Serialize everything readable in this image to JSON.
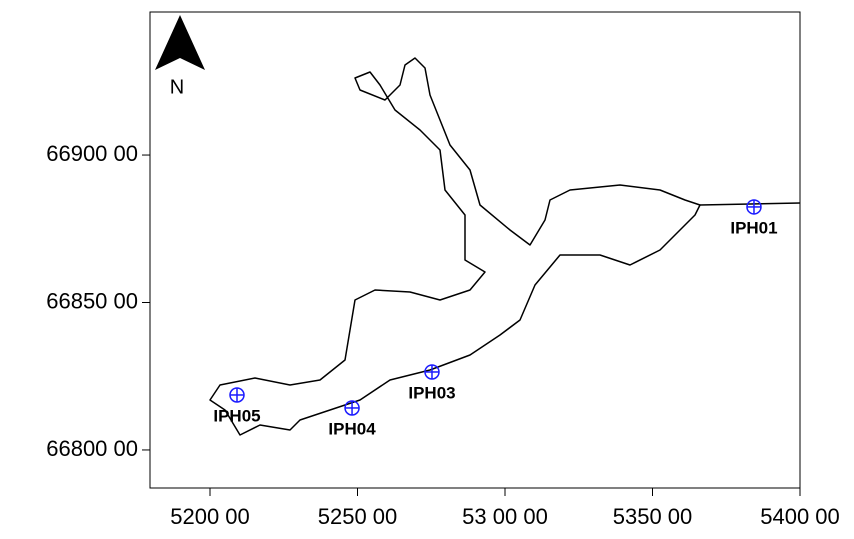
{
  "chart_data": {
    "type": "scatter",
    "north_label": "N",
    "xlim": [
      517966,
      540000
    ],
    "ylim": [
      6678710,
      6694850
    ],
    "xticks": [
      {
        "value": 520000,
        "label": "5200 00"
      },
      {
        "value": 525000,
        "label": "5250 00"
      },
      {
        "value": 530000,
        "label": "53 00 00"
      },
      {
        "value": 535000,
        "label": "5350 00"
      },
      {
        "value": 540000,
        "label": "5400 00"
      }
    ],
    "yticks": [
      {
        "value": 6680000,
        "label": "66800 00"
      },
      {
        "value": 6685000,
        "label": "66850 00"
      },
      {
        "value": 6690000,
        "label": "66900 00"
      }
    ],
    "color": "#1a1aff",
    "series": [
      {
        "name": "IPH01",
        "x": [
          538440
        ],
        "values": [
          6688240
        ]
      },
      {
        "name": "IPH03",
        "x": [
          527525
        ],
        "values": [
          6682644
        ]
      },
      {
        "name": "IPH04",
        "x": [
          524815
        ],
        "values": [
          6681424
        ]
      },
      {
        "name": "IPH05",
        "x": [
          520915
        ],
        "values": [
          6681864
        ]
      }
    ]
  }
}
